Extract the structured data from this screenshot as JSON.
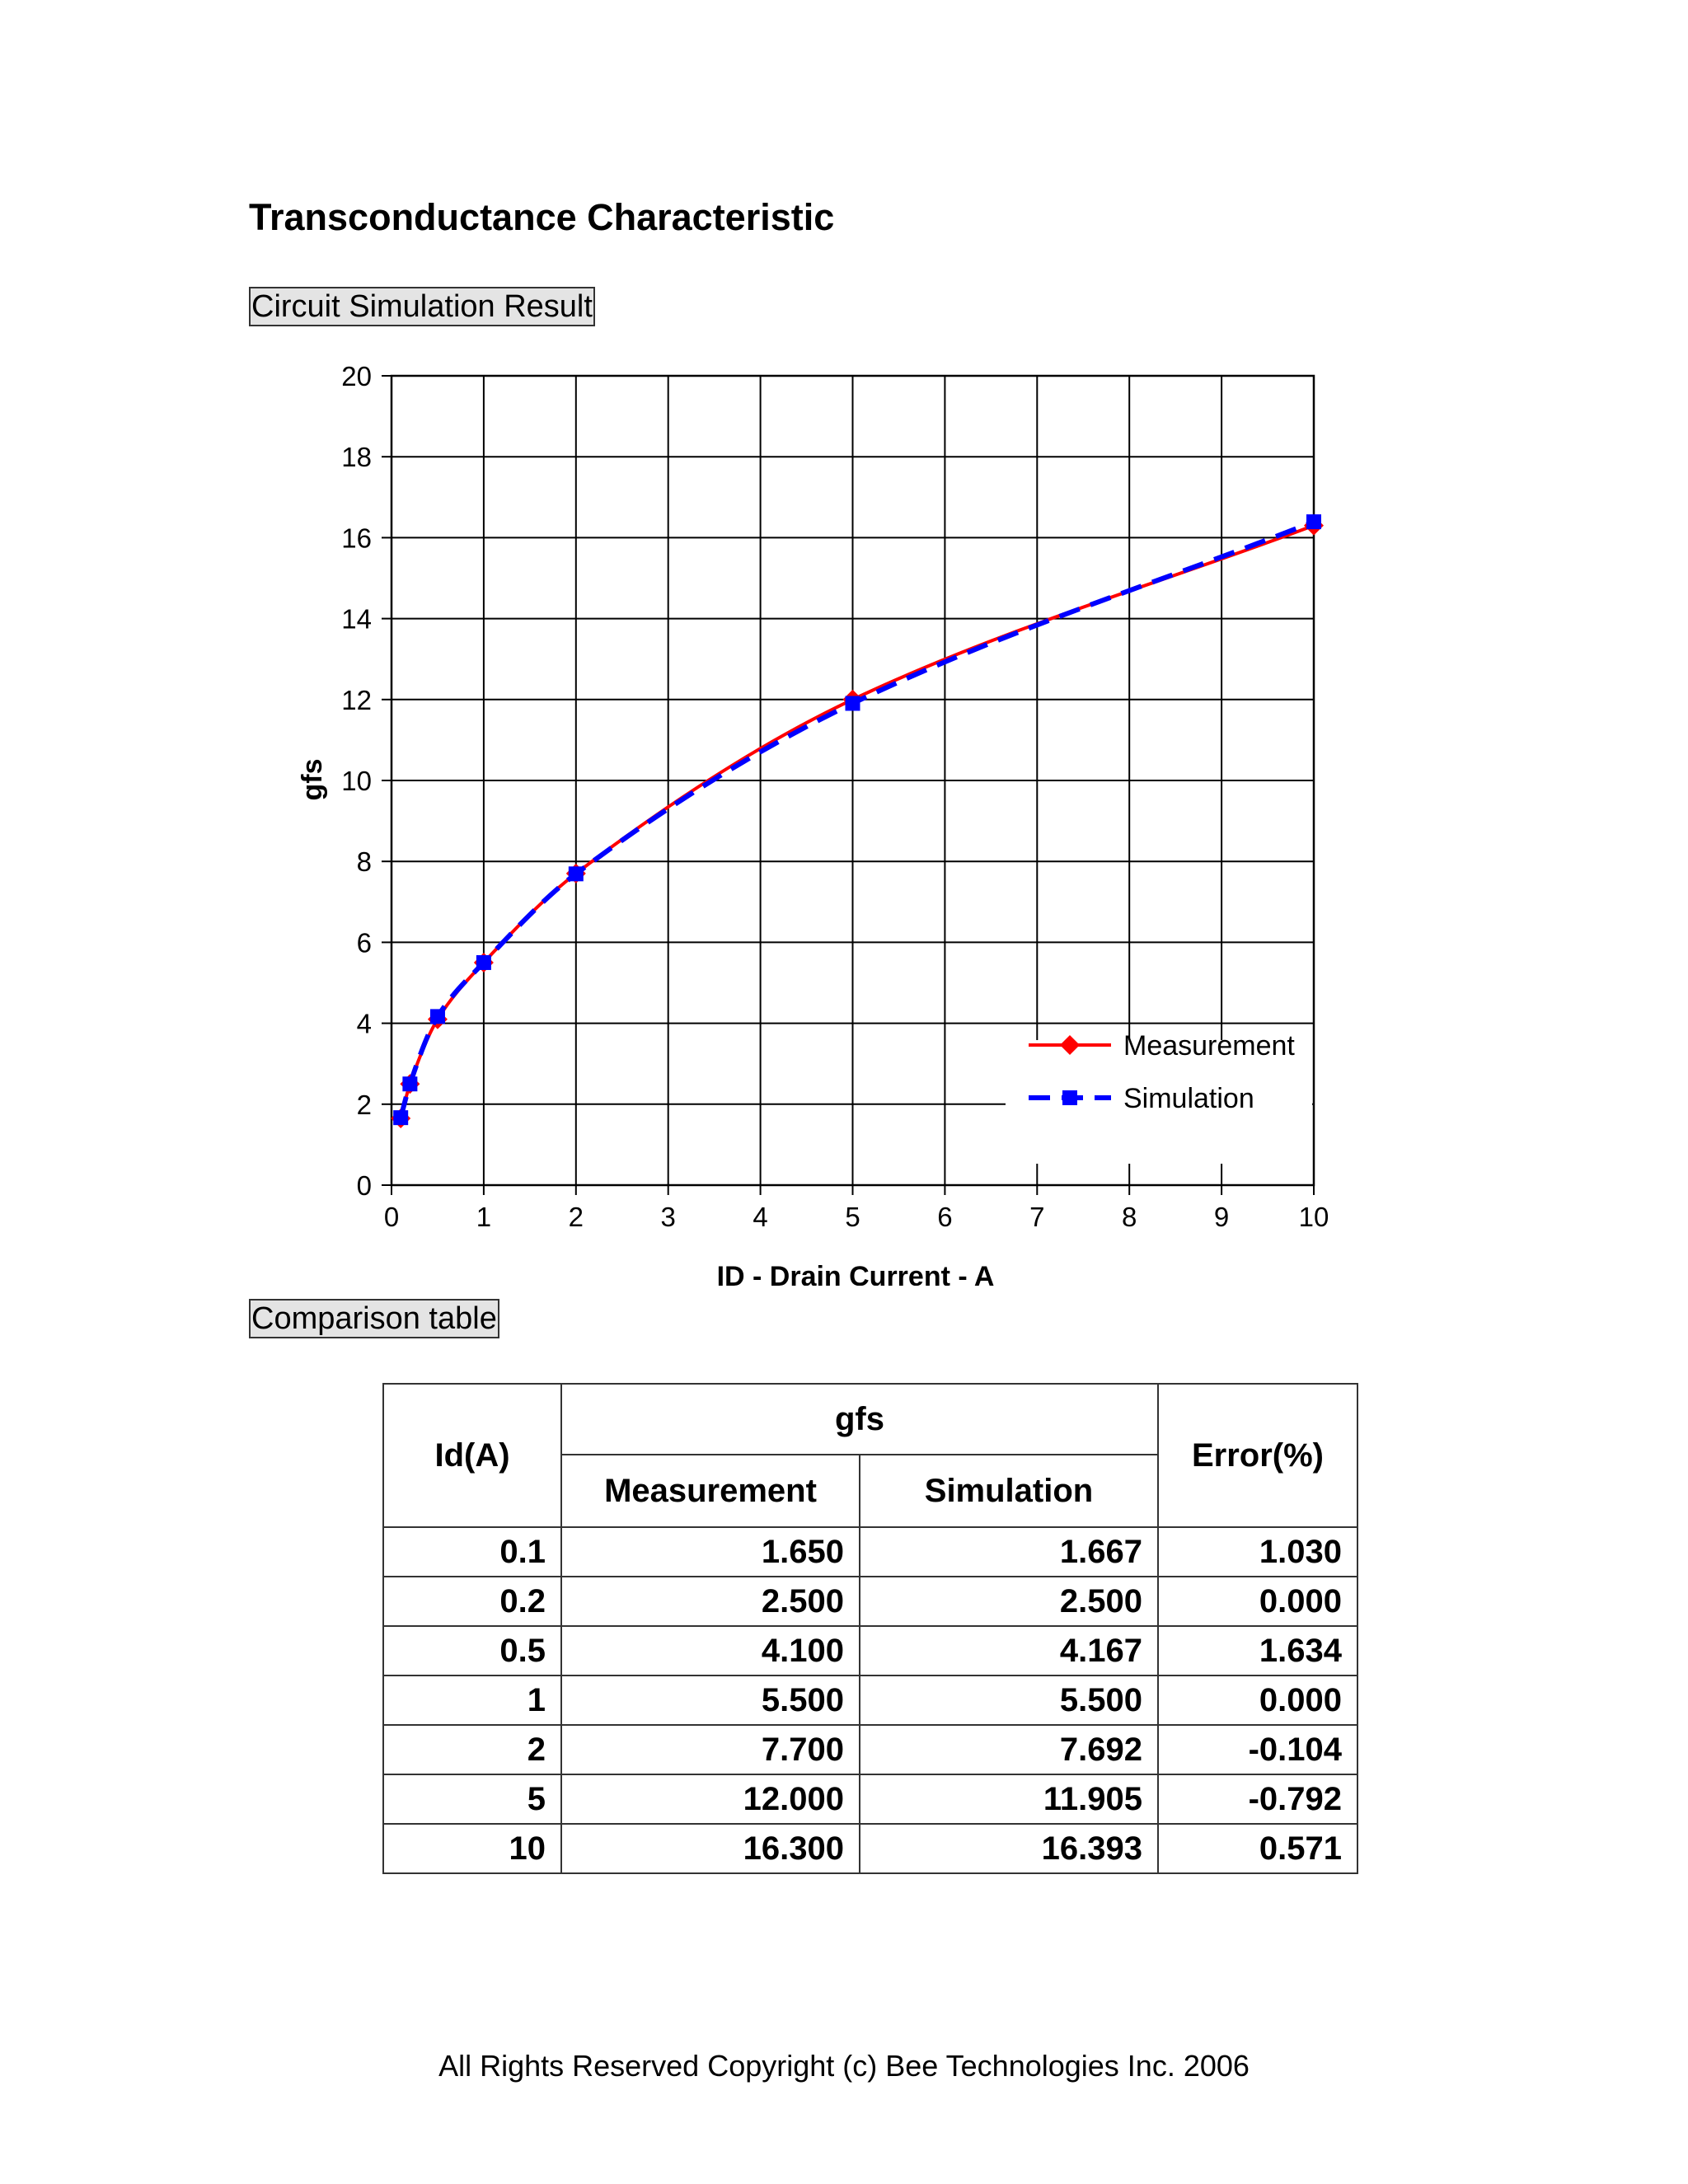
{
  "document": {
    "title": "Transconductance Characteristic",
    "section_simulation": "Circuit Simulation Result",
    "section_comparison": "Comparison table",
    "footer": "All Rights Reserved Copyright (c) Bee Technologies Inc. 2006"
  },
  "chart_data": {
    "type": "line",
    "title": "",
    "xlabel": "ID - Drain Current - A",
    "ylabel": "gfs",
    "xlim": [
      0,
      10
    ],
    "ylim": [
      0,
      20
    ],
    "xticks": [
      0,
      1,
      2,
      3,
      4,
      5,
      6,
      7,
      8,
      9,
      10
    ],
    "yticks": [
      0,
      2,
      4,
      6,
      8,
      10,
      12,
      14,
      16,
      18,
      20
    ],
    "grid": true,
    "legend_position": "bottom-right",
    "series": [
      {
        "name": "Measurement",
        "color": "#ff0000",
        "marker": "diamond",
        "line_style": "solid",
        "x": [
          0.1,
          0.2,
          0.5,
          1,
          2,
          5,
          10
        ],
        "y": [
          1.65,
          2.5,
          4.1,
          5.5,
          7.7,
          12.0,
          16.3
        ]
      },
      {
        "name": "Simulation",
        "color": "#0000ff",
        "marker": "square",
        "line_style": "dashed",
        "x": [
          0.1,
          0.2,
          0.5,
          1,
          2,
          5,
          10
        ],
        "y": [
          1.667,
          2.5,
          4.167,
          5.5,
          7.692,
          11.905,
          16.393
        ]
      }
    ]
  },
  "table": {
    "header": {
      "id": "Id(A)",
      "gfs": "gfs",
      "measurement": "Measurement",
      "simulation": "Simulation",
      "error": "Error(%)"
    },
    "rows": [
      {
        "id": "0.1",
        "measurement": "1.650",
        "simulation": "1.667",
        "error": "1.030"
      },
      {
        "id": "0.2",
        "measurement": "2.500",
        "simulation": "2.500",
        "error": "0.000"
      },
      {
        "id": "0.5",
        "measurement": "4.100",
        "simulation": "4.167",
        "error": "1.634"
      },
      {
        "id": "1",
        "measurement": "5.500",
        "simulation": "5.500",
        "error": "0.000"
      },
      {
        "id": "2",
        "measurement": "7.700",
        "simulation": "7.692",
        "error": "-0.104"
      },
      {
        "id": "5",
        "measurement": "12.000",
        "simulation": "11.905",
        "error": "-0.792"
      },
      {
        "id": "10",
        "measurement": "16.300",
        "simulation": "16.393",
        "error": "0.571"
      }
    ]
  }
}
